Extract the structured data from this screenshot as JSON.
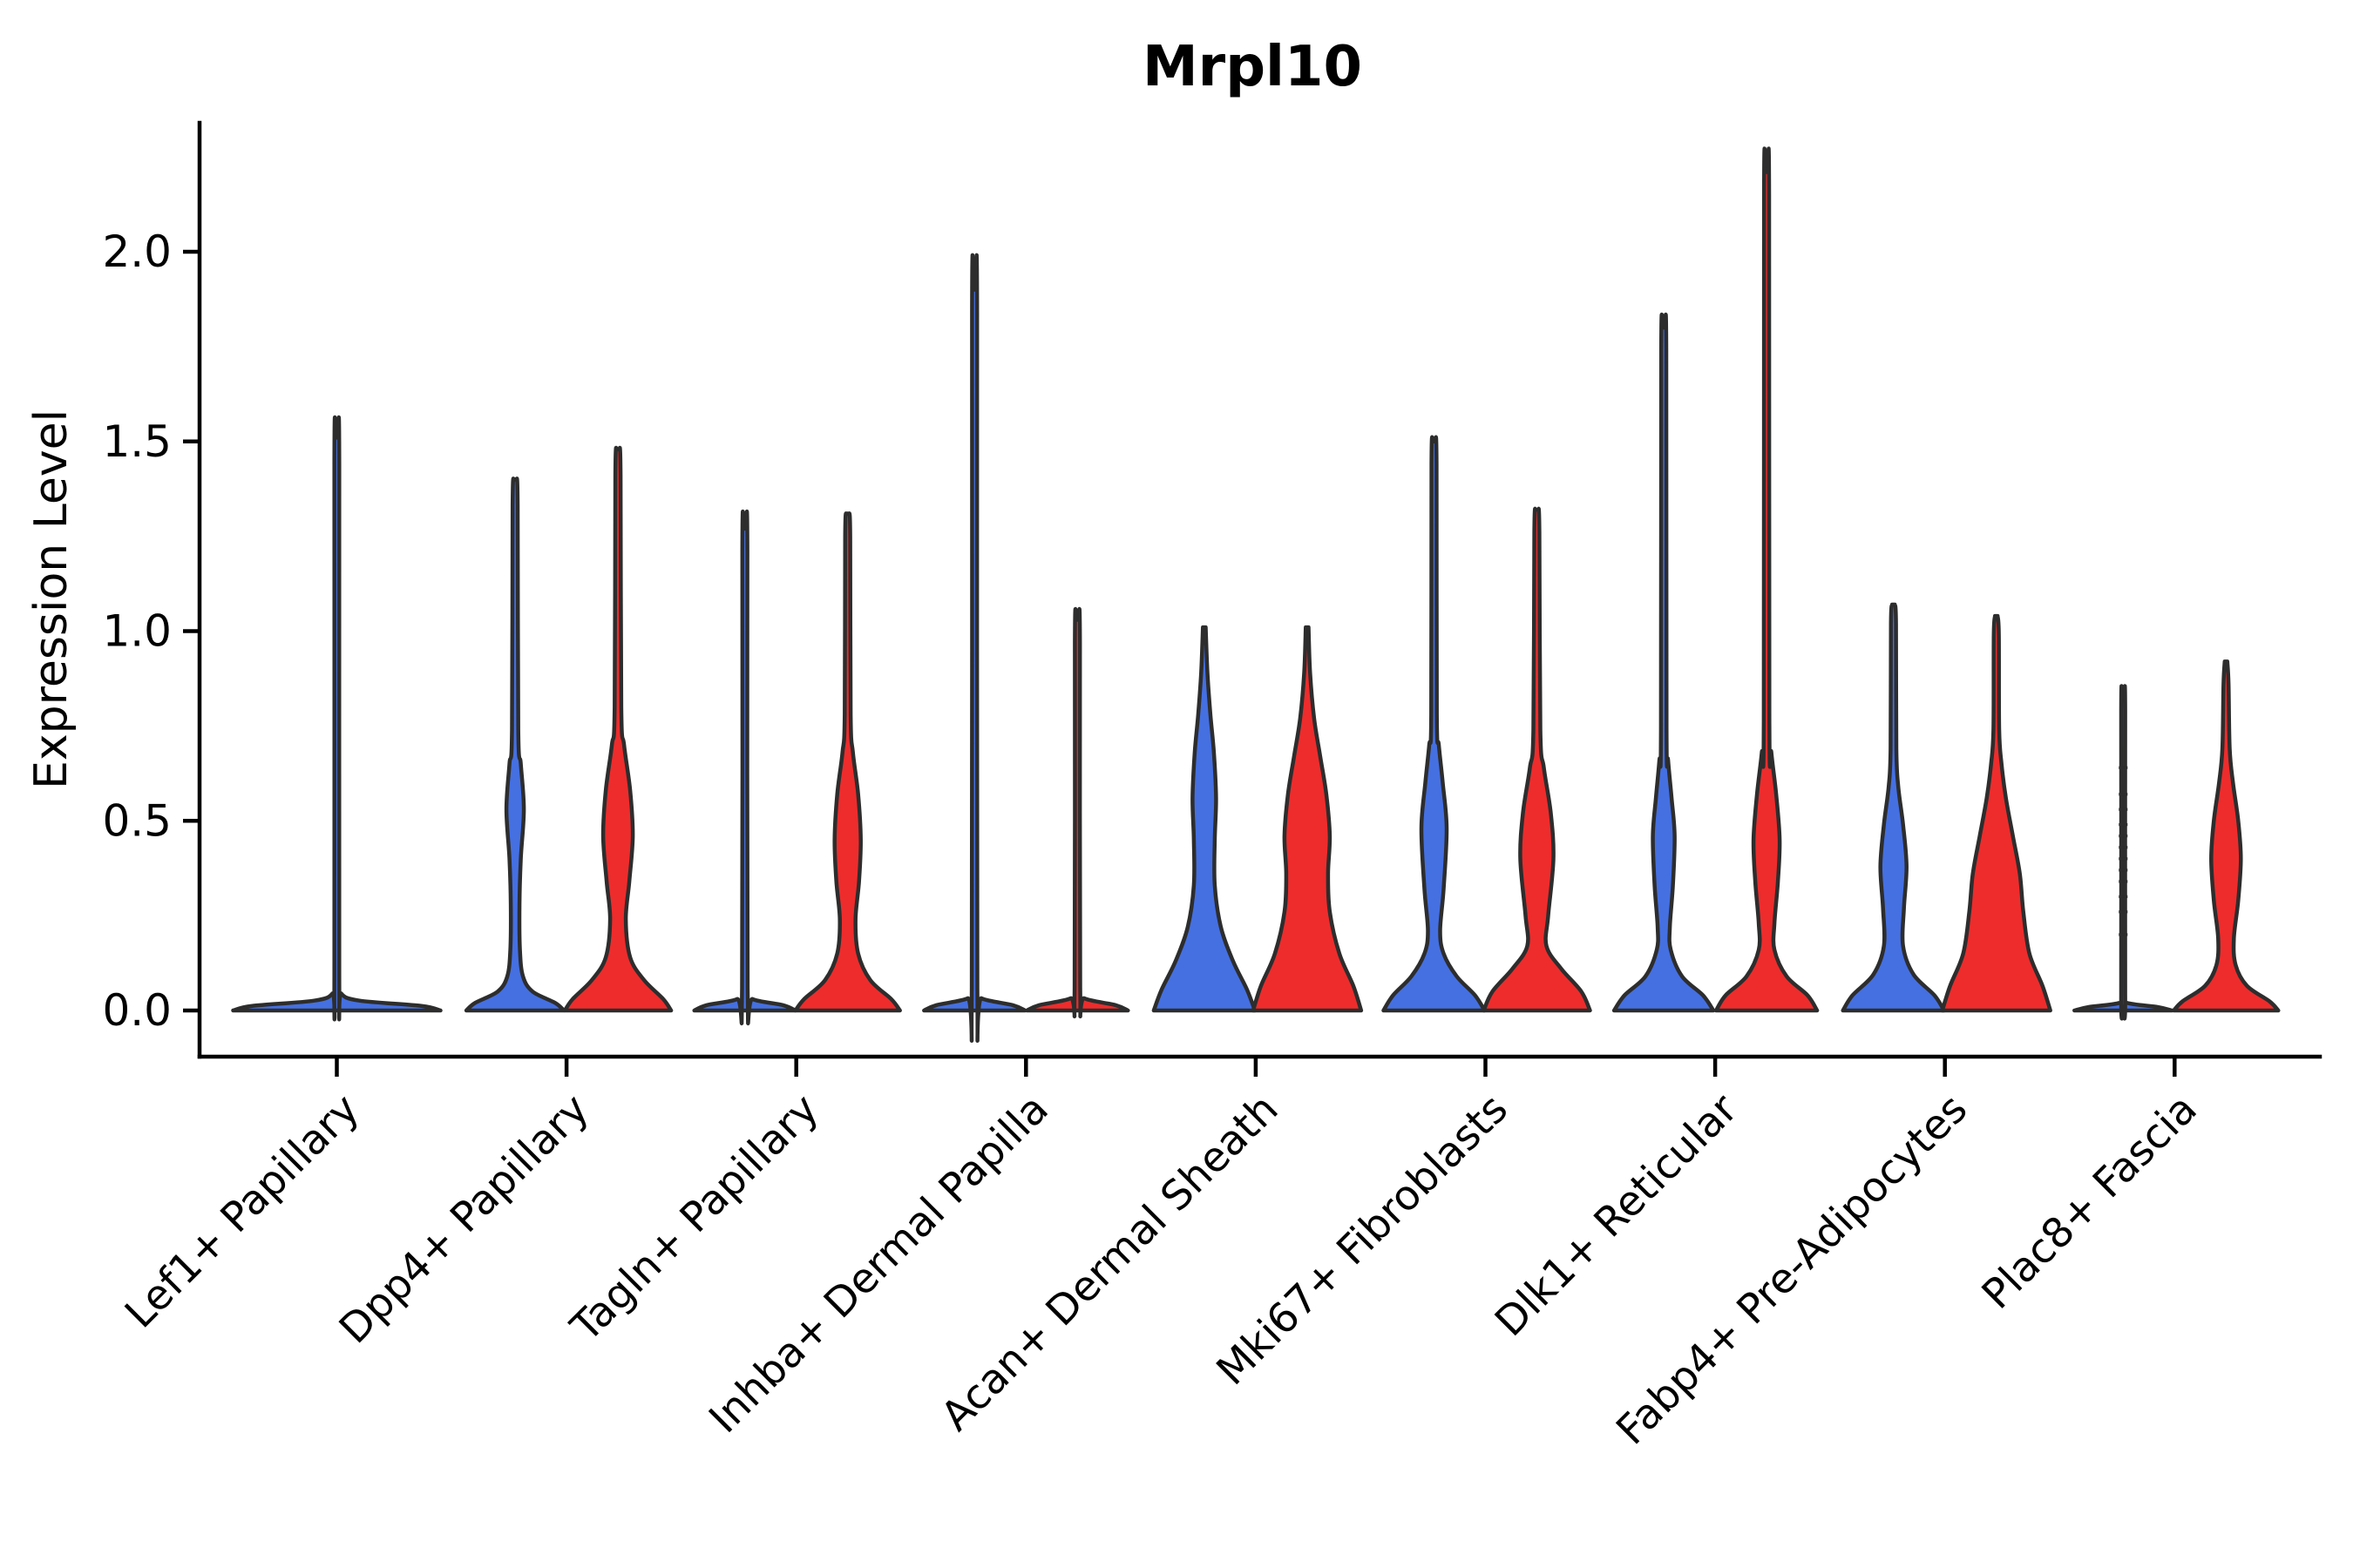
{
  "chart_data": {
    "type": "violin",
    "title": "Mrpl10",
    "xlabel": "",
    "ylabel": "Expression Level",
    "ylim": [
      0,
      2.34
    ],
    "grid": false,
    "legend_position": "none",
    "yticks": {
      "labels": [
        "0.0",
        "0.5",
        "1.0",
        "1.5",
        "2.0"
      ],
      "values": [
        0,
        0.5,
        1.0,
        1.5,
        2.0
      ]
    },
    "colors": {
      "blue": "#4570E2",
      "red": "#EE2C2C",
      "outline": "#2d2d2d",
      "axis": "#000000",
      "background": "#ffffff"
    },
    "categories": [
      {
        "label": "Lef1+ Papillary",
        "violins": [
          {
            "color": "blue",
            "full_width": true,
            "max": 1.51,
            "profile": [
              [
                0,
                119
              ],
              [
                0.012,
                97
              ],
              [
                0.026,
                26
              ],
              [
                0.045,
                5
              ],
              [
                0.09,
                2.8
              ],
              [
                1.44,
                2.8
              ],
              [
                1.51,
                1.5
              ]
            ]
          }
        ]
      },
      {
        "label": "Dpp4+ Papillary",
        "violins": [
          {
            "color": "blue",
            "max": 1.4,
            "profile": [
              [
                0,
                56
              ],
              [
                0.02,
                46
              ],
              [
                0.05,
                20
              ],
              [
                0.09,
                9
              ],
              [
                0.16,
                5.5
              ],
              [
                0.28,
                5
              ],
              [
                0.4,
                6.5
              ],
              [
                0.53,
                10
              ],
              [
                0.65,
                6.5
              ],
              [
                0.74,
                3.6
              ],
              [
                1.33,
                2.9
              ],
              [
                1.4,
                1.5
              ]
            ]
          },
          {
            "color": "red",
            "max": 1.48,
            "profile": [
              [
                0,
                61
              ],
              [
                0.03,
                52
              ],
              [
                0.08,
                30
              ],
              [
                0.14,
                14
              ],
              [
                0.24,
                9
              ],
              [
                0.34,
                13
              ],
              [
                0.46,
                17
              ],
              [
                0.58,
                14
              ],
              [
                0.7,
                7
              ],
              [
                0.8,
                3.8
              ],
              [
                1.41,
                3
              ],
              [
                1.48,
                1.5
              ]
            ]
          }
        ]
      },
      {
        "label": "Tagln+ Papillary",
        "violins": [
          {
            "color": "blue",
            "max": 1.27,
            "profile": [
              [
                0,
                58
              ],
              [
                0.014,
                44
              ],
              [
                0.03,
                9
              ],
              [
                0.06,
                3.2
              ],
              [
                1.21,
                2.9
              ],
              [
                1.27,
                1.5
              ]
            ]
          },
          {
            "color": "red",
            "max": 1.31,
            "profile": [
              [
                0,
                60
              ],
              [
                0.03,
                50
              ],
              [
                0.08,
                26
              ],
              [
                0.15,
                12
              ],
              [
                0.24,
                9
              ],
              [
                0.34,
                13
              ],
              [
                0.45,
                15
              ],
              [
                0.57,
                12
              ],
              [
                0.68,
                6
              ],
              [
                0.78,
                3.4
              ],
              [
                1.25,
                2.9
              ],
              [
                1.31,
                1.5
              ]
            ]
          }
        ]
      },
      {
        "label": "Inhba+ Dermal Papilla",
        "violins": [
          {
            "color": "blue",
            "max": 1.9,
            "profile": [
              [
                0,
                58
              ],
              [
                0.014,
                44
              ],
              [
                0.032,
                8
              ],
              [
                0.06,
                3.2
              ],
              [
                1.84,
                2.9
              ],
              [
                1.9,
                1.5
              ]
            ]
          },
          {
            "color": "red",
            "max": 1.03,
            "profile": [
              [
                0,
                58
              ],
              [
                0.014,
                44
              ],
              [
                0.032,
                8
              ],
              [
                0.06,
                3.2
              ],
              [
                0.97,
                2.9
              ],
              [
                1.03,
                1.5
              ]
            ]
          }
        ]
      },
      {
        "label": "Acan+ Dermal Sheath",
        "violins": [
          {
            "color": "blue",
            "max": 1.01,
            "profile": [
              [
                0,
                58
              ],
              [
                0.055,
                49
              ],
              [
                0.13,
                33
              ],
              [
                0.22,
                19
              ],
              [
                0.33,
                12
              ],
              [
                0.45,
                12
              ],
              [
                0.56,
                13.5
              ],
              [
                0.68,
                11
              ],
              [
                0.78,
                7
              ],
              [
                0.89,
                3.6
              ],
              [
                1.01,
                1.6
              ]
            ]
          },
          {
            "color": "red",
            "max": 1.01,
            "profile": [
              [
                0,
                62
              ],
              [
                0.065,
                53
              ],
              [
                0.15,
                37
              ],
              [
                0.26,
                26
              ],
              [
                0.36,
                24
              ],
              [
                0.46,
                26
              ],
              [
                0.57,
                22
              ],
              [
                0.67,
                15
              ],
              [
                0.77,
                8
              ],
              [
                0.89,
                3.4
              ],
              [
                1.01,
                1.6
              ]
            ]
          }
        ]
      },
      {
        "label": "Mki67+ Fibroblasts",
        "violins": [
          {
            "color": "blue",
            "max": 1.5,
            "profile": [
              [
                0,
                58
              ],
              [
                0.04,
                47
              ],
              [
                0.09,
                26
              ],
              [
                0.15,
                11
              ],
              [
                0.21,
                7
              ],
              [
                0.32,
                11
              ],
              [
                0.48,
                14.5
              ],
              [
                0.6,
                10
              ],
              [
                0.7,
                5.5
              ],
              [
                0.78,
                3.2
              ],
              [
                1.44,
                2.9
              ],
              [
                1.5,
                1.5
              ]
            ]
          },
          {
            "color": "red",
            "max": 1.32,
            "profile": [
              [
                0,
                61
              ],
              [
                0.05,
                51
              ],
              [
                0.11,
                28
              ],
              [
                0.17,
                11
              ],
              [
                0.25,
                13
              ],
              [
                0.4,
                19
              ],
              [
                0.52,
                16
              ],
              [
                0.64,
                8
              ],
              [
                0.74,
                4
              ],
              [
                1.26,
                2.9
              ],
              [
                1.32,
                1.5
              ]
            ]
          }
        ]
      },
      {
        "label": "Dlk1+ Reticular",
        "violins": [
          {
            "color": "blue",
            "max": 1.8,
            "profile": [
              [
                0,
                57
              ],
              [
                0.04,
                45
              ],
              [
                0.09,
                21
              ],
              [
                0.16,
                8
              ],
              [
                0.22,
                7
              ],
              [
                0.33,
                10.5
              ],
              [
                0.46,
                12.5
              ],
              [
                0.56,
                9
              ],
              [
                0.66,
                5
              ],
              [
                0.74,
                3.2
              ],
              [
                1.74,
                2.9
              ],
              [
                1.8,
                1.5
              ]
            ]
          },
          {
            "color": "red",
            "max": 2.21,
            "profile": [
              [
                0,
                58
              ],
              [
                0.04,
                47
              ],
              [
                0.09,
                23
              ],
              [
                0.16,
                9
              ],
              [
                0.23,
                9
              ],
              [
                0.34,
                13
              ],
              [
                0.45,
                15
              ],
              [
                0.57,
                11
              ],
              [
                0.68,
                5.5
              ],
              [
                0.77,
                3.2
              ],
              [
                2.15,
                2.9
              ],
              [
                2.21,
                1.5
              ]
            ]
          }
        ]
      },
      {
        "label": "Fabp4+ Pre-Adipocytes",
        "violins": [
          {
            "color": "blue",
            "max": 1.07,
            "profile": [
              [
                0,
                58
              ],
              [
                0.04,
                47
              ],
              [
                0.095,
                23
              ],
              [
                0.17,
                11
              ],
              [
                0.27,
                12
              ],
              [
                0.38,
                15
              ],
              [
                0.49,
                11
              ],
              [
                0.59,
                5.5
              ],
              [
                0.69,
                3.3
              ],
              [
                1.02,
                2.9
              ],
              [
                1.07,
                1.5
              ]
            ]
          },
          {
            "color": "red",
            "max": 1.04,
            "profile": [
              [
                0,
                62
              ],
              [
                0.065,
                53
              ],
              [
                0.15,
                38
              ],
              [
                0.26,
                31
              ],
              [
                0.36,
                27
              ],
              [
                0.46,
                19
              ],
              [
                0.56,
                11
              ],
              [
                0.65,
                6
              ],
              [
                0.74,
                3.3
              ],
              [
                0.99,
                2.9
              ],
              [
                1.04,
                1.5
              ]
            ]
          }
        ]
      },
      {
        "label": "Plac8+ Fascia",
        "violins": [
          {
            "color": "blue",
            "max": 0.82,
            "profile": [
              [
                0,
                56
              ],
              [
                0.009,
                40
              ],
              [
                0.02,
                4.5
              ],
              [
                0.04,
                2.3
              ],
              [
                0.79,
                2.3
              ],
              [
                0.82,
                1.3
              ]
            ],
            "points": [
              0.2,
              0.26,
              0.3,
              0.34,
              0.37,
              0.4,
              0.43,
              0.46,
              0.49,
              0.53,
              0.57,
              0.64
            ]
          },
          {
            "color": "red",
            "max": 0.92,
            "profile": [
              [
                0,
                60
              ],
              [
                0.024,
                50
              ],
              [
                0.065,
                24
              ],
              [
                0.12,
                11
              ],
              [
                0.19,
                9
              ],
              [
                0.29,
                14
              ],
              [
                0.4,
                17
              ],
              [
                0.5,
                14
              ],
              [
                0.6,
                8
              ],
              [
                0.69,
                4.2
              ],
              [
                0.86,
                2.9
              ],
              [
                0.92,
                1.5
              ]
            ]
          }
        ]
      }
    ]
  }
}
